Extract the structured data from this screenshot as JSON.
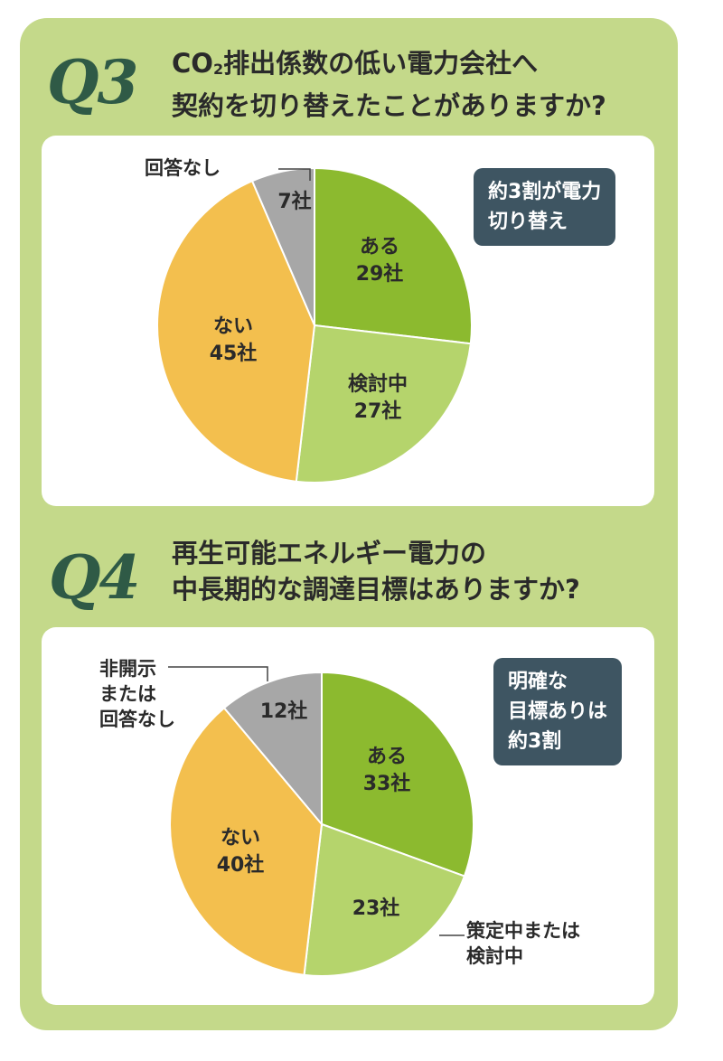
{
  "q3": {
    "label": "Q3",
    "title_line1_pre": "CO",
    "title_line1_sub": "2",
    "title_line1_post": "排出係数の低い電力会社へ",
    "title_line2": "契約を切り替えたことがありますか?",
    "callout_line1": "約3割が電力",
    "callout_line2": "切り替え"
  },
  "q4": {
    "label": "Q4",
    "title_line1": "再生可能エネルギー電力の",
    "title_line2": "中長期的な調達目標はありますか?",
    "callout_line1": "明確な",
    "callout_line2": "目標ありは",
    "callout_line3": "約3割",
    "ext_nd_line1": "非開示",
    "ext_nd_line2": "または",
    "ext_nd_line3": "回答なし",
    "ext_plan_line1": "策定中または",
    "ext_plan_line2": "検討中"
  },
  "chart_data": [
    {
      "type": "pie",
      "title": "CO2排出係数の低い電力会社へ契約を切り替えたことがありますか?",
      "slices": [
        {
          "label": "ある",
          "value": 29,
          "value_text": "29社",
          "color": "#8cba2f"
        },
        {
          "label": "検討中",
          "value": 27,
          "value_text": "27社",
          "color": "#b5d46c"
        },
        {
          "label": "ない",
          "value": 45,
          "value_text": "45社",
          "color": "#f3bf4e"
        },
        {
          "label": "回答なし",
          "value": 7,
          "value_text": "7社",
          "color": "#a7a7a7"
        }
      ]
    },
    {
      "type": "pie",
      "title": "再生可能エネルギー電力の中長期的な調達目標はありますか?",
      "slices": [
        {
          "label": "ある",
          "value": 33,
          "value_text": "33社",
          "color": "#8cba2f"
        },
        {
          "label": "策定中または検討中",
          "value": 23,
          "value_text": "23社",
          "color": "#b5d46c"
        },
        {
          "label": "ない",
          "value": 40,
          "value_text": "40社",
          "color": "#f3bf4e"
        },
        {
          "label": "非開示または回答なし",
          "value": 12,
          "value_text": "12社",
          "color": "#a7a7a7"
        }
      ]
    }
  ]
}
